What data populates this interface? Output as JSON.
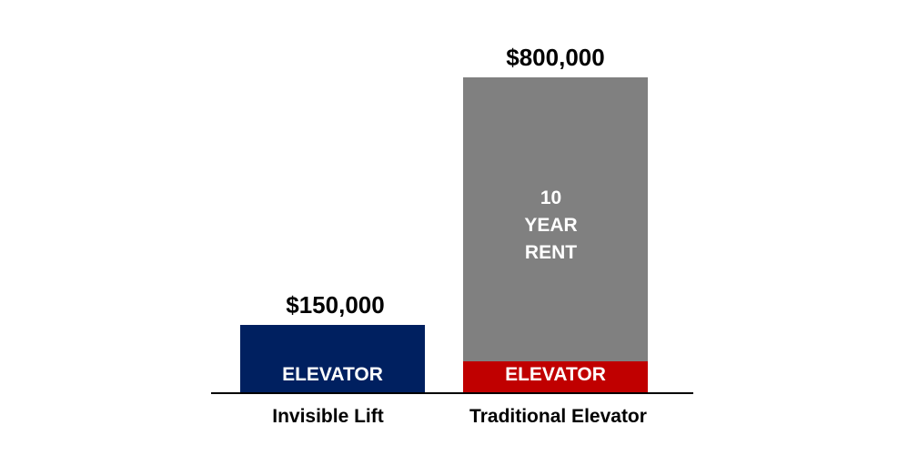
{
  "chart_data": {
    "type": "bar",
    "stacked": true,
    "title": "",
    "xlabel": "",
    "ylabel": "",
    "ylim": [
      0,
      800000
    ],
    "grid": false,
    "categories": [
      "Invisible Lift",
      "Traditional Elevator"
    ],
    "totals": [
      150000,
      800000
    ],
    "total_labels": [
      "$150,000",
      "$800,000"
    ],
    "bars": [
      {
        "category": "Invisible Lift",
        "segments": [
          {
            "label": "ELEVATOR",
            "value": 150000,
            "color": "#002060"
          }
        ]
      },
      {
        "category": "Traditional Elevator",
        "segments": [
          {
            "label": "ELEVATOR",
            "value": 80000,
            "color": "#C00000"
          },
          {
            "label": "10\nYEAR\nRENT",
            "value": 720000,
            "color": "#808080"
          }
        ]
      }
    ]
  }
}
